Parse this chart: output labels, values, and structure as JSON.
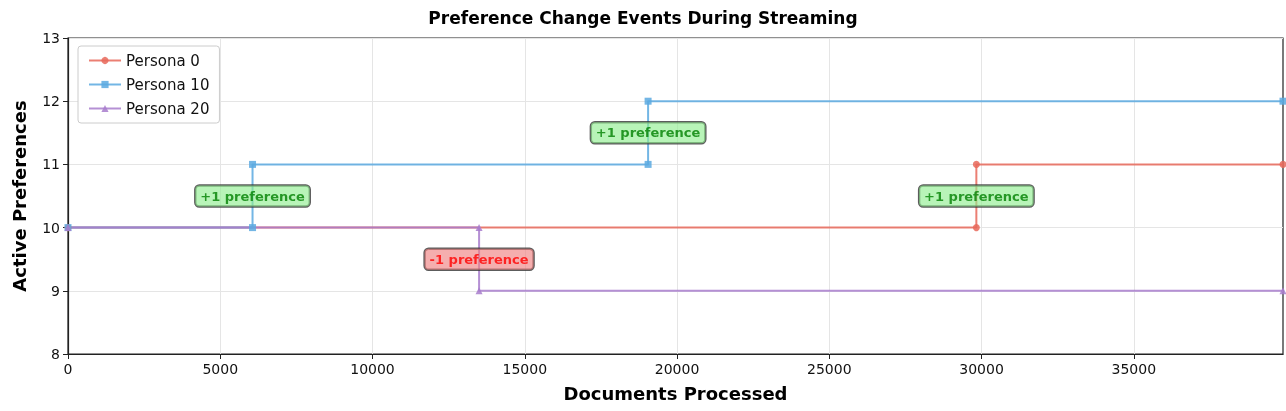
{
  "chart_data": {
    "type": "line",
    "title": "Preference Change Events During Streaming",
    "xlabel": "Documents Processed",
    "ylabel": "Active Preferences",
    "xlim": [
      0,
      39900
    ],
    "xticks": [
      0,
      5000,
      10000,
      15000,
      20000,
      25000,
      30000,
      35000
    ],
    "ylim": [
      8,
      13
    ],
    "yticks": [
      8,
      9,
      10,
      11,
      12,
      13
    ],
    "grid": true,
    "legend": "top left",
    "series": [
      {
        "name": "Persona 0",
        "color": "#e8695a",
        "marker": "circle",
        "x": [
          0,
          29830,
          29830,
          39900
        ],
        "values": [
          10,
          10,
          11,
          11
        ]
      },
      {
        "name": "Persona 10",
        "color": "#5aa9e0",
        "marker": "square",
        "x": [
          0,
          6060,
          6060,
          19050,
          19050,
          39900
        ],
        "values": [
          10,
          10,
          11,
          11,
          12,
          12
        ]
      },
      {
        "name": "Persona 20",
        "color": "#a87ccc",
        "marker": "triangle",
        "x": [
          0,
          13500,
          13500,
          39900
        ],
        "values": [
          10,
          10,
          9,
          9
        ]
      }
    ],
    "annotations": [
      {
        "text": "+1 preference",
        "x": 6060,
        "y": 10.5
      },
      {
        "text": "+1 preference",
        "x": 19050,
        "y": 11.5
      },
      {
        "text": "+1 preference",
        "x": 29830,
        "y": 10.5
      },
      {
        "text": "-1 preference",
        "x": 13500,
        "y": 9.5
      }
    ]
  }
}
